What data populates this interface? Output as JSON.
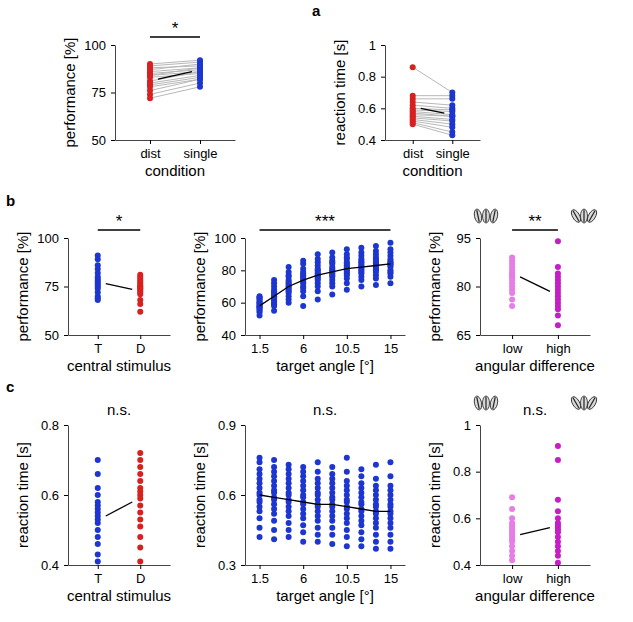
{
  "chart_data": [
    {
      "type": "paired_strip",
      "label": "a",
      "x_label": "condition",
      "y_label": "performance [%]",
      "categories": [
        "dist",
        "single"
      ],
      "colors": [
        "#d92020",
        "#1e36d0"
      ],
      "values": [
        [
          90,
          89,
          88,
          87,
          86,
          85,
          84,
          84,
          83,
          81,
          80,
          79,
          78,
          76,
          74,
          72
        ],
        [
          92,
          91,
          89,
          90,
          88,
          87,
          88,
          86,
          85,
          86,
          84,
          83,
          82,
          82,
          80,
          78
        ]
      ],
      "means": [
        82,
        86
      ],
      "ylim": [
        50,
        100
      ],
      "yticks": [
        50,
        75,
        100
      ],
      "grid": false,
      "annotations": [
        {
          "text": "*",
          "x": [
            "dist",
            "single"
          ]
        }
      ]
    },
    {
      "type": "paired_strip",
      "x_label": "condition",
      "y_label": "reaction time [s]",
      "categories": [
        "dist",
        "single"
      ],
      "colors": [
        "#d92020",
        "#1e36d0"
      ],
      "values": [
        [
          0.86,
          0.68,
          0.66,
          0.64,
          0.62,
          0.6,
          0.59,
          0.58,
          0.57,
          0.56,
          0.55,
          0.54,
          0.53,
          0.52,
          0.51,
          0.5
        ],
        [
          0.7,
          0.68,
          0.66,
          0.62,
          0.6,
          0.59,
          0.58,
          0.56,
          0.55,
          0.55,
          0.53,
          0.52,
          0.5,
          0.48,
          0.45,
          0.43
        ]
      ],
      "means": [
        0.6,
        0.57
      ],
      "ylim": [
        0.4,
        1
      ],
      "yticks": [
        0.4,
        0.6,
        0.8,
        1
      ],
      "grid": false
    },
    {
      "type": "strip",
      "label": "b",
      "x_label": "central stimulus",
      "y_label": "performance [%]",
      "categories": [
        "T",
        "D"
      ],
      "colors": [
        "#1e36d0",
        "#d92020"
      ],
      "values": [
        [
          91,
          89,
          86,
          84,
          82,
          80,
          79,
          78,
          77,
          76,
          75,
          74,
          72,
          70,
          69,
          68
        ],
        [
          81,
          80,
          79,
          78,
          77,
          76,
          75,
          75,
          74,
          74,
          73,
          72,
          71,
          68,
          66,
          62
        ]
      ],
      "means": [
        76.5,
        73.5
      ],
      "ylim": [
        50,
        100
      ],
      "yticks": [
        50,
        75,
        100
      ],
      "grid": false,
      "annotations": [
        {
          "text": "*",
          "x": [
            "T",
            "D"
          ]
        }
      ]
    },
    {
      "type": "strip",
      "x_label": "target angle [°]",
      "y_label": "performance [%]",
      "x": [
        1.5,
        3,
        4.5,
        6,
        7.5,
        9,
        10.5,
        12,
        13.5,
        15
      ],
      "color": "#1e36d0",
      "values": [
        [
          52,
          54,
          55,
          56,
          57,
          57,
          58,
          58,
          59,
          60,
          60,
          61,
          62,
          63,
          63,
          64
        ],
        [
          55,
          58,
          59,
          60,
          61,
          62,
          63,
          64,
          64,
          65,
          66,
          67,
          68,
          70,
          72,
          74
        ],
        [
          60,
          62,
          64,
          66,
          67,
          68,
          69,
          70,
          71,
          72,
          73,
          74,
          76,
          77,
          79,
          82
        ],
        [
          58,
          64,
          67,
          69,
          70,
          72,
          73,
          74,
          75,
          76,
          77,
          78,
          79,
          81,
          84,
          86
        ],
        [
          62,
          67,
          70,
          72,
          74,
          75,
          76,
          77,
          78,
          79,
          80,
          81,
          83,
          85,
          87,
          90
        ],
        [
          65,
          70,
          72,
          74,
          76,
          77,
          78,
          79,
          80,
          81,
          82,
          84,
          85,
          86,
          88,
          91
        ],
        [
          68,
          72,
          75,
          77,
          78,
          79,
          80,
          81,
          82,
          83,
          84,
          85,
          87,
          88,
          90,
          93
        ],
        [
          70,
          74,
          76,
          78,
          79,
          80,
          81,
          82,
          83,
          84,
          85,
          86,
          87,
          89,
          91,
          94
        ],
        [
          71,
          75,
          77,
          79,
          80,
          81,
          82,
          83,
          84,
          85,
          86,
          87,
          88,
          90,
          92,
          95
        ],
        [
          72,
          76,
          78,
          79,
          80,
          82,
          83,
          84,
          84,
          85,
          86,
          87,
          89,
          91,
          93,
          97
        ]
      ],
      "means": [
        58,
        64,
        70,
        74,
        77,
        79,
        81,
        82,
        83,
        84
      ],
      "xlim": [
        0,
        16.5
      ],
      "xticks": [
        1.5,
        6,
        10.5,
        15
      ],
      "ylim": [
        40,
        100
      ],
      "yticks": [
        40,
        60,
        80,
        100
      ],
      "grid": false,
      "annotations": [
        {
          "text": "***",
          "x": [
            1.5,
            15
          ]
        }
      ]
    },
    {
      "type": "strip",
      "x_label": "angular difference",
      "y_label": "performance [%]",
      "categories": [
        "low",
        "high"
      ],
      "colors": [
        "#e57ee6",
        "#c41ec4"
      ],
      "values": [
        [
          89,
          88,
          87,
          86,
          85,
          84,
          84,
          83,
          83,
          82,
          81,
          80,
          79,
          78,
          76,
          74
        ],
        [
          94,
          86,
          84,
          83,
          82,
          81,
          80,
          79,
          78,
          77,
          76,
          75,
          74,
          73,
          71,
          68
        ]
      ],
      "means": [
        83,
        78.5
      ],
      "ylim": [
        65,
        95
      ],
      "yticks": [
        65,
        80,
        95
      ],
      "grid": false,
      "annotations": [
        {
          "text": "**",
          "x": [
            "low",
            "high"
          ]
        }
      ]
    },
    {
      "type": "strip",
      "label": "c",
      "x_label": "central stimulus",
      "y_label": "reaction time [s]",
      "categories": [
        "T",
        "D"
      ],
      "colors": [
        "#1e36d0",
        "#d92020"
      ],
      "values": [
        [
          0.7,
          0.66,
          0.62,
          0.6,
          0.58,
          0.57,
          0.56,
          0.55,
          0.54,
          0.53,
          0.52,
          0.5,
          0.48,
          0.46,
          0.43,
          0.41
        ],
        [
          0.72,
          0.7,
          0.68,
          0.66,
          0.64,
          0.62,
          0.61,
          0.6,
          0.59,
          0.57,
          0.55,
          0.53,
          0.51,
          0.48,
          0.45,
          0.41
        ]
      ],
      "means": [
        0.54,
        0.58
      ],
      "ylim": [
        0.4,
        0.8
      ],
      "yticks": [
        0.4,
        0.6,
        0.8
      ],
      "grid": false,
      "annotations": [
        {
          "text": "n.s."
        }
      ]
    },
    {
      "type": "strip",
      "x_label": "target angle [°]",
      "y_label": "reaction time [s]",
      "x": [
        1.5,
        3,
        4.5,
        6,
        7.5,
        9,
        10.5,
        12,
        13.5,
        15
      ],
      "color": "#1e36d0",
      "values": [
        [
          0.42,
          0.46,
          0.5,
          0.53,
          0.55,
          0.57,
          0.58,
          0.6,
          0.61,
          0.63,
          0.65,
          0.67,
          0.69,
          0.71,
          0.74,
          0.76
        ],
        [
          0.41,
          0.45,
          0.49,
          0.52,
          0.54,
          0.56,
          0.58,
          0.59,
          0.61,
          0.62,
          0.64,
          0.66,
          0.68,
          0.7,
          0.72,
          0.75
        ],
        [
          0.42,
          0.45,
          0.48,
          0.51,
          0.53,
          0.55,
          0.57,
          0.58,
          0.6,
          0.61,
          0.63,
          0.65,
          0.67,
          0.69,
          0.71,
          0.73
        ],
        [
          0.4,
          0.44,
          0.47,
          0.5,
          0.52,
          0.54,
          0.56,
          0.57,
          0.59,
          0.6,
          0.62,
          0.64,
          0.66,
          0.68,
          0.7,
          0.72
        ],
        [
          0.4,
          0.43,
          0.46,
          0.49,
          0.51,
          0.53,
          0.55,
          0.56,
          0.58,
          0.6,
          0.61,
          0.63,
          0.65,
          0.67,
          0.7,
          0.74
        ],
        [
          0.39,
          0.43,
          0.46,
          0.49,
          0.51,
          0.53,
          0.55,
          0.56,
          0.58,
          0.59,
          0.61,
          0.63,
          0.65,
          0.67,
          0.69,
          0.72
        ],
        [
          0.38,
          0.42,
          0.45,
          0.48,
          0.5,
          0.52,
          0.54,
          0.55,
          0.57,
          0.58,
          0.6,
          0.62,
          0.64,
          0.66,
          0.7,
          0.76
        ],
        [
          0.38,
          0.41,
          0.44,
          0.47,
          0.49,
          0.51,
          0.53,
          0.54,
          0.56,
          0.57,
          0.59,
          0.61,
          0.63,
          0.65,
          0.68,
          0.71
        ],
        [
          0.37,
          0.4,
          0.43,
          0.46,
          0.48,
          0.5,
          0.52,
          0.53,
          0.55,
          0.56,
          0.58,
          0.6,
          0.62,
          0.64,
          0.67,
          0.73
        ],
        [
          0.37,
          0.4,
          0.43,
          0.46,
          0.48,
          0.5,
          0.52,
          0.53,
          0.55,
          0.56,
          0.58,
          0.6,
          0.62,
          0.64,
          0.68,
          0.74
        ]
      ],
      "means": [
        0.6,
        0.59,
        0.58,
        0.57,
        0.56,
        0.56,
        0.55,
        0.54,
        0.53,
        0.53
      ],
      "xlim": [
        0,
        16.5
      ],
      "xticks": [
        1.5,
        6,
        10.5,
        15
      ],
      "ylim": [
        0.3,
        0.9
      ],
      "yticks": [
        0.3,
        0.6,
        0.9
      ],
      "grid": false,
      "annotations": [
        {
          "text": "n.s."
        }
      ]
    },
    {
      "type": "strip",
      "x_label": "angular difference",
      "y_label": "reaction time [s]",
      "categories": [
        "low",
        "high"
      ],
      "colors": [
        "#e57ee6",
        "#c41ec4"
      ],
      "values": [
        [
          0.69,
          0.64,
          0.6,
          0.58,
          0.57,
          0.56,
          0.55,
          0.54,
          0.53,
          0.52,
          0.51,
          0.5,
          0.48,
          0.46,
          0.44,
          0.42
        ],
        [
          0.91,
          0.85,
          0.68,
          0.63,
          0.6,
          0.58,
          0.57,
          0.56,
          0.55,
          0.54,
          0.52,
          0.5,
          0.48,
          0.46,
          0.44,
          0.41
        ]
      ],
      "means": [
        0.53,
        0.56
      ],
      "ylim": [
        0.4,
        1
      ],
      "yticks": [
        0.4,
        0.6,
        0.8,
        1
      ],
      "grid": false,
      "annotations": [
        {
          "text": "n.s."
        }
      ]
    }
  ]
}
